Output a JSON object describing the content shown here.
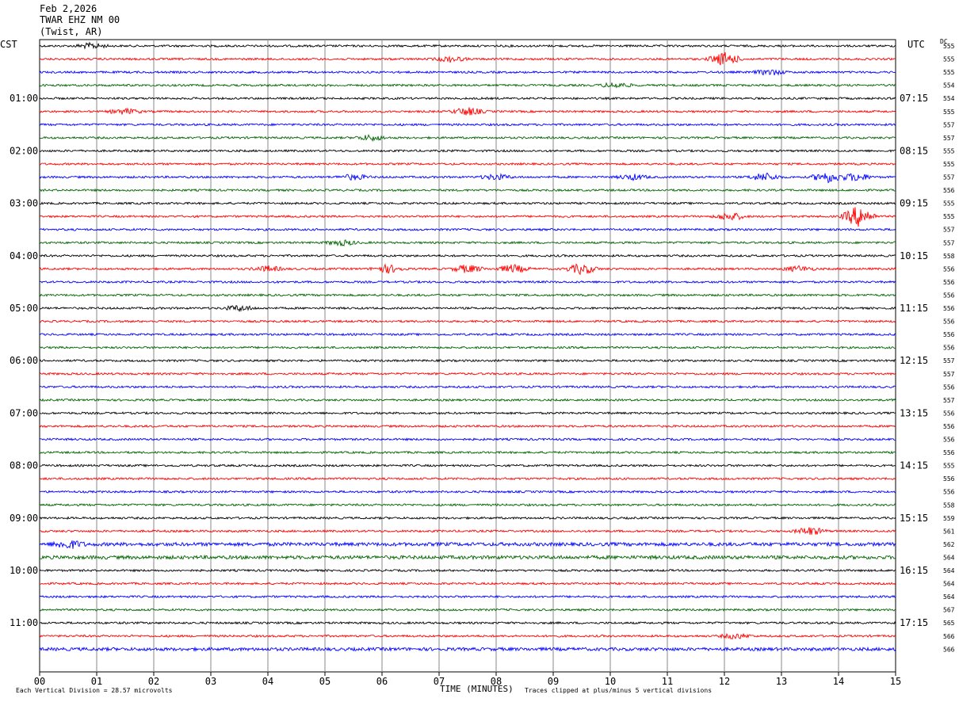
{
  "header": {
    "date": "Feb 2,2026",
    "station": "TWAR EHZ NM 00",
    "location": "(Twist, AR)"
  },
  "labels": {
    "left_zone": "CST",
    "right_zone": "UTC",
    "dc": "DC"
  },
  "footer": {
    "scale": "Each Vertical Division =   28.57 microvolts",
    "xlabel": "TIME (MINUTES)",
    "clip": "Traces clipped at plus/minus 5 vertical divisions"
  },
  "colors": {
    "cycle": [
      "#000000",
      "#ff0000",
      "#0000ff",
      "#006400"
    ],
    "grid": "#888888"
  },
  "chart_data": {
    "type": "line",
    "subtype": "helicorder",
    "xlabel": "TIME (MINUTES)",
    "xlim": [
      0,
      15
    ],
    "x_ticks": [
      "00",
      "01",
      "02",
      "03",
      "04",
      "05",
      "06",
      "07",
      "08",
      "09",
      "10",
      "11",
      "12",
      "13",
      "14",
      "15"
    ],
    "rows_per_hour": 4,
    "row_count": 47,
    "cst_hour_labels": [
      "01:00",
      "02:00",
      "03:00",
      "04:00",
      "05:00",
      "06:00",
      "07:00",
      "08:00",
      "09:00",
      "10:00",
      "11:00"
    ],
    "utc_hour_labels": [
      "07:15",
      "08:15",
      "09:15",
      "10:15",
      "11:15",
      "12:15",
      "13:15",
      "14:15",
      "15:15",
      "16:15",
      "17:15"
    ],
    "dc_offsets": [
      555,
      555,
      555,
      554,
      554,
      555,
      557,
      557,
      555,
      555,
      557,
      556,
      555,
      555,
      557,
      557,
      558,
      556,
      556,
      556,
      556,
      556,
      556,
      556,
      557,
      557,
      556,
      557,
      556,
      556,
      556,
      556,
      555,
      556,
      556,
      558,
      559,
      561,
      562,
      564,
      564,
      564,
      564,
      567,
      565,
      566,
      566
    ],
    "events": [
      {
        "row": 0,
        "min": 0.9,
        "amp": 2
      },
      {
        "row": 1,
        "min": 7.2,
        "amp": 2
      },
      {
        "row": 1,
        "min": 12.0,
        "amp": 5
      },
      {
        "row": 2,
        "min": 12.8,
        "amp": 2
      },
      {
        "row": 3,
        "min": 10.1,
        "amp": 2
      },
      {
        "row": 5,
        "min": 1.5,
        "amp": 2
      },
      {
        "row": 5,
        "min": 7.5,
        "amp": 3
      },
      {
        "row": 7,
        "min": 5.8,
        "amp": 2
      },
      {
        "row": 10,
        "min": 5.5,
        "amp": 2
      },
      {
        "row": 10,
        "min": 8.0,
        "amp": 2
      },
      {
        "row": 10,
        "min": 10.4,
        "amp": 2
      },
      {
        "row": 10,
        "min": 12.7,
        "amp": 3
      },
      {
        "row": 10,
        "min": 13.8,
        "amp": 4
      },
      {
        "row": 10,
        "min": 14.3,
        "amp": 3
      },
      {
        "row": 13,
        "min": 12.1,
        "amp": 3
      },
      {
        "row": 13,
        "min": 14.35,
        "amp": 8
      },
      {
        "row": 15,
        "min": 5.3,
        "amp": 2
      },
      {
        "row": 17,
        "min": 4.0,
        "amp": 2
      },
      {
        "row": 17,
        "min": 6.1,
        "amp": 3
      },
      {
        "row": 17,
        "min": 7.5,
        "amp": 3
      },
      {
        "row": 17,
        "min": 8.3,
        "amp": 3
      },
      {
        "row": 17,
        "min": 9.5,
        "amp": 4
      },
      {
        "row": 17,
        "min": 13.3,
        "amp": 2
      },
      {
        "row": 20,
        "min": 3.5,
        "amp": 2
      },
      {
        "row": 37,
        "min": 13.5,
        "amp": 3
      },
      {
        "row": 38,
        "min": 0.5,
        "amp": 3
      },
      {
        "row": 45,
        "min": 12.2,
        "amp": 2
      }
    ]
  }
}
